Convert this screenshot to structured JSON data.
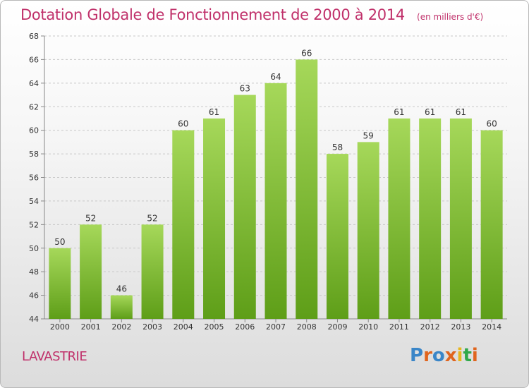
{
  "header": {
    "title": "Dotation Globale de Fonctionnement de 2000 à 2014",
    "subtitle": "(en milliers d'€)"
  },
  "footer": {
    "city": "LAVASTRIE",
    "logo": "Proxiti"
  },
  "colors": {
    "title": "#c0306a",
    "bar_light": "#a6d85a",
    "bar_dark": "#5e9e18",
    "logo_letters": [
      "#3a86c8",
      "#e0651e",
      "#3a86c8",
      "#e0651e",
      "#e8b61e",
      "#2fa84a",
      "#e0651e"
    ]
  },
  "chart_data": {
    "type": "bar",
    "categories": [
      "2000",
      "2001",
      "2002",
      "2003",
      "2004",
      "2005",
      "2006",
      "2007",
      "2008",
      "2009",
      "2010",
      "2011",
      "2012",
      "2013",
      "2014"
    ],
    "values": [
      50,
      52,
      46,
      52,
      60,
      61,
      63,
      64,
      66,
      58,
      59,
      61,
      61,
      61,
      60
    ],
    "ylim": [
      44,
      68
    ],
    "yticks": [
      44,
      46,
      48,
      50,
      52,
      54,
      56,
      58,
      60,
      62,
      64,
      66,
      68
    ],
    "grid": true,
    "data_labels": true
  }
}
